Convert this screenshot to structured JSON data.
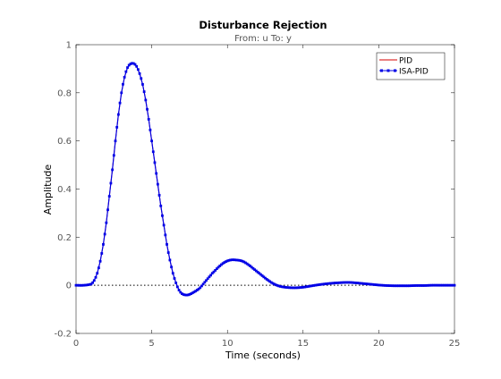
{
  "chart_data": {
    "type": "line",
    "title": "Disturbance Rejection",
    "subtitle": "From: u  To: y",
    "xlabel": "Time (seconds)",
    "ylabel": "Amplitude",
    "xlim": [
      0,
      25
    ],
    "ylim": [
      -0.2,
      1
    ],
    "xticks": [
      0,
      5,
      10,
      15,
      20,
      25
    ],
    "yticks": [
      -0.2,
      0,
      0.2,
      0.4,
      0.6,
      0.8,
      1
    ],
    "xtick_labels": [
      "0",
      "5",
      "10",
      "15",
      "20",
      "25"
    ],
    "ytick_labels": [
      "-0.2",
      "0",
      "0.2",
      "0.4",
      "0.6",
      "0.8",
      "1"
    ],
    "grid": false,
    "zero_reference_line": true,
    "legend_position": "top-right",
    "series": [
      {
        "name": "PID",
        "color": "#d40000",
        "style": "line",
        "x": [
          0,
          0.5,
          1.0,
          1.2,
          1.4,
          1.6,
          1.8,
          2.0,
          2.2,
          2.4,
          2.6,
          2.8,
          3.0,
          3.2,
          3.4,
          3.6,
          3.8,
          4.0,
          4.2,
          4.4,
          4.6,
          4.8,
          5.0,
          5.2,
          5.4,
          5.6,
          5.8,
          6.0,
          6.2,
          6.4,
          6.6,
          6.8,
          7.0,
          7.2,
          7.4,
          7.6,
          7.8,
          8.0,
          8.2,
          8.4,
          8.6,
          8.8,
          9.0,
          9.4,
          9.8,
          10.2,
          10.6,
          11.0,
          11.4,
          11.8,
          12.2,
          12.6,
          13.0,
          13.4,
          13.8,
          14.2,
          14.6,
          15.0,
          15.5,
          16.0,
          16.5,
          17.0,
          17.5,
          18.0,
          18.5,
          19.0,
          19.5,
          20.0,
          20.5,
          21.0,
          21.5,
          22.0,
          22.5,
          23.0,
          23.5,
          24.0,
          24.5,
          25.0
        ],
        "y": [
          0,
          0,
          0.005,
          0.02,
          0.05,
          0.1,
          0.17,
          0.26,
          0.37,
          0.48,
          0.6,
          0.71,
          0.8,
          0.865,
          0.905,
          0.92,
          0.922,
          0.91,
          0.88,
          0.835,
          0.77,
          0.69,
          0.6,
          0.51,
          0.42,
          0.33,
          0.25,
          0.17,
          0.105,
          0.05,
          0.01,
          -0.02,
          -0.035,
          -0.04,
          -0.04,
          -0.035,
          -0.028,
          -0.02,
          -0.01,
          0.005,
          0.02,
          0.035,
          0.05,
          0.075,
          0.095,
          0.105,
          0.105,
          0.1,
          0.085,
          0.065,
          0.045,
          0.025,
          0.008,
          -0.003,
          -0.008,
          -0.01,
          -0.01,
          -0.008,
          -0.003,
          0.002,
          0.006,
          0.009,
          0.011,
          0.012,
          0.01,
          0.007,
          0.004,
          0.001,
          -0.001,
          -0.002,
          -0.002,
          -0.002,
          -0.001,
          -0.001,
          0,
          0,
          0,
          0
        ]
      },
      {
        "name": "ISA-PID",
        "color": "#0000e6",
        "style": "line+markers",
        "x": [
          0,
          0.5,
          1.0,
          1.2,
          1.4,
          1.6,
          1.8,
          2.0,
          2.2,
          2.4,
          2.6,
          2.8,
          3.0,
          3.2,
          3.4,
          3.6,
          3.8,
          4.0,
          4.2,
          4.4,
          4.6,
          4.8,
          5.0,
          5.2,
          5.4,
          5.6,
          5.8,
          6.0,
          6.2,
          6.4,
          6.6,
          6.8,
          7.0,
          7.2,
          7.4,
          7.6,
          7.8,
          8.0,
          8.2,
          8.4,
          8.6,
          8.8,
          9.0,
          9.4,
          9.8,
          10.2,
          10.6,
          11.0,
          11.4,
          11.8,
          12.2,
          12.6,
          13.0,
          13.4,
          13.8,
          14.2,
          14.6,
          15.0,
          15.5,
          16.0,
          16.5,
          17.0,
          17.5,
          18.0,
          18.5,
          19.0,
          19.5,
          20.0,
          20.5,
          21.0,
          21.5,
          22.0,
          22.5,
          23.0,
          23.5,
          24.0,
          24.5,
          25.0
        ],
        "y": [
          0,
          0,
          0.005,
          0.02,
          0.05,
          0.1,
          0.17,
          0.26,
          0.37,
          0.48,
          0.6,
          0.71,
          0.8,
          0.865,
          0.905,
          0.92,
          0.922,
          0.91,
          0.88,
          0.835,
          0.77,
          0.69,
          0.6,
          0.51,
          0.42,
          0.33,
          0.25,
          0.17,
          0.105,
          0.05,
          0.01,
          -0.02,
          -0.035,
          -0.04,
          -0.04,
          -0.035,
          -0.028,
          -0.02,
          -0.01,
          0.005,
          0.02,
          0.035,
          0.05,
          0.075,
          0.095,
          0.105,
          0.105,
          0.1,
          0.085,
          0.065,
          0.045,
          0.025,
          0.008,
          -0.003,
          -0.008,
          -0.01,
          -0.01,
          -0.008,
          -0.003,
          0.002,
          0.006,
          0.009,
          0.011,
          0.012,
          0.01,
          0.007,
          0.004,
          0.001,
          -0.001,
          -0.002,
          -0.002,
          -0.002,
          -0.001,
          -0.001,
          0,
          0,
          0,
          0
        ]
      }
    ]
  }
}
